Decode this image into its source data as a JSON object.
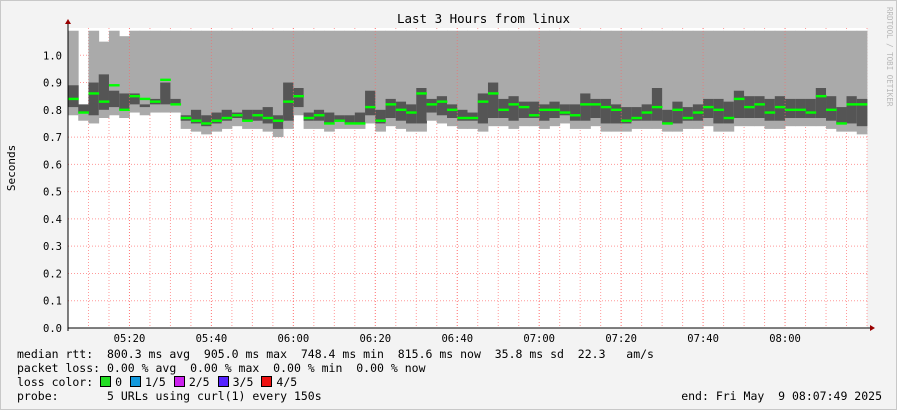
{
  "chart_data": {
    "type": "bar",
    "title": "Last 3 Hours from linux",
    "ylabel": "Seconds",
    "watermark": "RRDTOOL / TOBI OETIKER",
    "ylim": [
      0,
      1.1
    ],
    "y_ticks": [
      "0.0",
      "0.1",
      "0.2",
      "0.3",
      "0.4",
      "0.5",
      "0.6",
      "0.7",
      "0.8",
      "0.9",
      "1.0"
    ],
    "x_ticks": [
      {
        "label": "05:20",
        "index": 6
      },
      {
        "label": "05:40",
        "index": 14
      },
      {
        "label": "06:00",
        "index": 22
      },
      {
        "label": "06:20",
        "index": 30
      },
      {
        "label": "06:40",
        "index": 38
      },
      {
        "label": "07:00",
        "index": 46
      },
      {
        "label": "07:20",
        "index": 54
      },
      {
        "label": "07:40",
        "index": 62
      },
      {
        "label": "08:00",
        "index": 70
      }
    ],
    "series": [
      {
        "name": "median",
        "values": [
          0.84,
          0.79,
          0.86,
          0.83,
          0.89,
          0.8,
          0.85,
          0.84,
          0.83,
          0.91,
          0.82,
          0.77,
          0.76,
          0.75,
          0.76,
          0.77,
          0.78,
          0.76,
          0.78,
          0.77,
          0.76,
          0.83,
          0.85,
          0.77,
          0.78,
          0.75,
          0.76,
          0.75,
          0.75,
          0.81,
          0.76,
          0.82,
          0.8,
          0.79,
          0.86,
          0.82,
          0.83,
          0.8,
          0.77,
          0.77,
          0.83,
          0.86,
          0.8,
          0.82,
          0.81,
          0.78,
          0.8,
          0.8,
          0.79,
          0.78,
          0.82,
          0.82,
          0.81,
          0.8,
          0.76,
          0.77,
          0.79,
          0.81,
          0.75,
          0.8,
          0.77,
          0.79,
          0.81,
          0.8,
          0.77,
          0.84,
          0.81,
          0.82,
          0.79,
          0.81,
          0.8,
          0.8,
          0.79,
          0.85,
          0.8,
          0.75,
          0.82,
          0.82
        ]
      },
      {
        "name": "min",
        "values": [
          0.78,
          0.76,
          0.75,
          0.77,
          0.78,
          0.77,
          0.79,
          0.78,
          0.79,
          0.79,
          0.79,
          0.73,
          0.72,
          0.71,
          0.72,
          0.73,
          0.74,
          0.73,
          0.73,
          0.72,
          0.7,
          0.73,
          0.78,
          0.73,
          0.73,
          0.72,
          0.73,
          0.73,
          0.73,
          0.75,
          0.72,
          0.74,
          0.73,
          0.72,
          0.72,
          0.76,
          0.75,
          0.74,
          0.73,
          0.73,
          0.72,
          0.74,
          0.74,
          0.73,
          0.74,
          0.74,
          0.73,
          0.74,
          0.75,
          0.73,
          0.73,
          0.74,
          0.72,
          0.72,
          0.72,
          0.73,
          0.73,
          0.73,
          0.72,
          0.72,
          0.73,
          0.73,
          0.74,
          0.72,
          0.72,
          0.74,
          0.74,
          0.74,
          0.73,
          0.73,
          0.74,
          0.74,
          0.74,
          0.74,
          0.73,
          0.72,
          0.72,
          0.71
        ]
      },
      {
        "name": "max",
        "values": [
          1.09,
          0.79,
          1.09,
          1.05,
          1.09,
          1.07,
          1.09,
          1.09,
          1.09,
          1.09,
          1.09,
          1.09,
          1.09,
          1.09,
          1.09,
          1.09,
          1.09,
          1.09,
          1.09,
          1.09,
          1.09,
          1.09,
          1.09,
          1.09,
          1.09,
          1.09,
          1.09,
          1.09,
          1.09,
          1.09,
          1.09,
          1.09,
          1.09,
          1.09,
          1.09,
          1.09,
          1.09,
          1.09,
          1.09,
          1.09,
          1.09,
          1.09,
          1.09,
          1.09,
          1.09,
          1.09,
          1.09,
          1.09,
          1.09,
          1.09,
          1.09,
          1.09,
          1.09,
          1.09,
          1.09,
          1.09,
          1.09,
          1.09,
          1.09,
          1.09,
          1.09,
          1.09,
          1.09,
          1.09,
          1.09,
          1.09,
          1.09,
          1.09,
          1.09,
          1.09,
          1.09,
          1.09,
          1.09,
          1.09,
          1.09,
          1.09,
          1.09,
          1.09
        ]
      }
    ],
    "band_values_upper_dark": [
      0.89,
      0.82,
      0.9,
      0.93,
      0.87,
      0.86,
      0.86,
      0.82,
      0.84,
      0.9,
      0.84,
      0.78,
      0.8,
      0.78,
      0.79,
      0.8,
      0.79,
      0.8,
      0.8,
      0.81,
      0.78,
      0.9,
      0.88,
      0.79,
      0.8,
      0.79,
      0.78,
      0.78,
      0.79,
      0.87,
      0.8,
      0.84,
      0.83,
      0.82,
      0.88,
      0.84,
      0.85,
      0.82,
      0.8,
      0.79,
      0.86,
      0.9,
      0.84,
      0.85,
      0.83,
      0.83,
      0.82,
      0.83,
      0.82,
      0.82,
      0.86,
      0.84,
      0.84,
      0.82,
      0.81,
      0.81,
      0.82,
      0.88,
      0.8,
      0.83,
      0.81,
      0.82,
      0.84,
      0.84,
      0.83,
      0.87,
      0.85,
      0.85,
      0.84,
      0.85,
      0.84,
      0.84,
      0.84,
      0.88,
      0.85,
      0.81,
      0.85,
      0.84
    ],
    "colors": {
      "median": "#00ff00",
      "grid": "#ff9999",
      "bg": "#ffffff"
    },
    "grid": true
  },
  "legend": {
    "median_rtt": "median rtt:  800.3 ms avg  905.0 ms max  748.4 ms min  815.6 ms now  35.8 ms sd  22.3   am/s",
    "packet_loss": "packet loss: 0.00 % avg  0.00 % max  0.00 % min  0.00 % now",
    "loss_color_label": "loss color:",
    "loss_colors": [
      {
        "label": "0",
        "color": "#22dd22"
      },
      {
        "label": "1/5",
        "color": "#1199dd"
      },
      {
        "label": "2/5",
        "color": "#cc22ee"
      },
      {
        "label": "3/5",
        "color": "#5522ff"
      },
      {
        "label": "4/5",
        "color": "#ee1111"
      }
    ],
    "probe": "probe:       5 URLs using curl(1) every 150s",
    "end": "end: Fri May  9 08:07:49 2025"
  }
}
